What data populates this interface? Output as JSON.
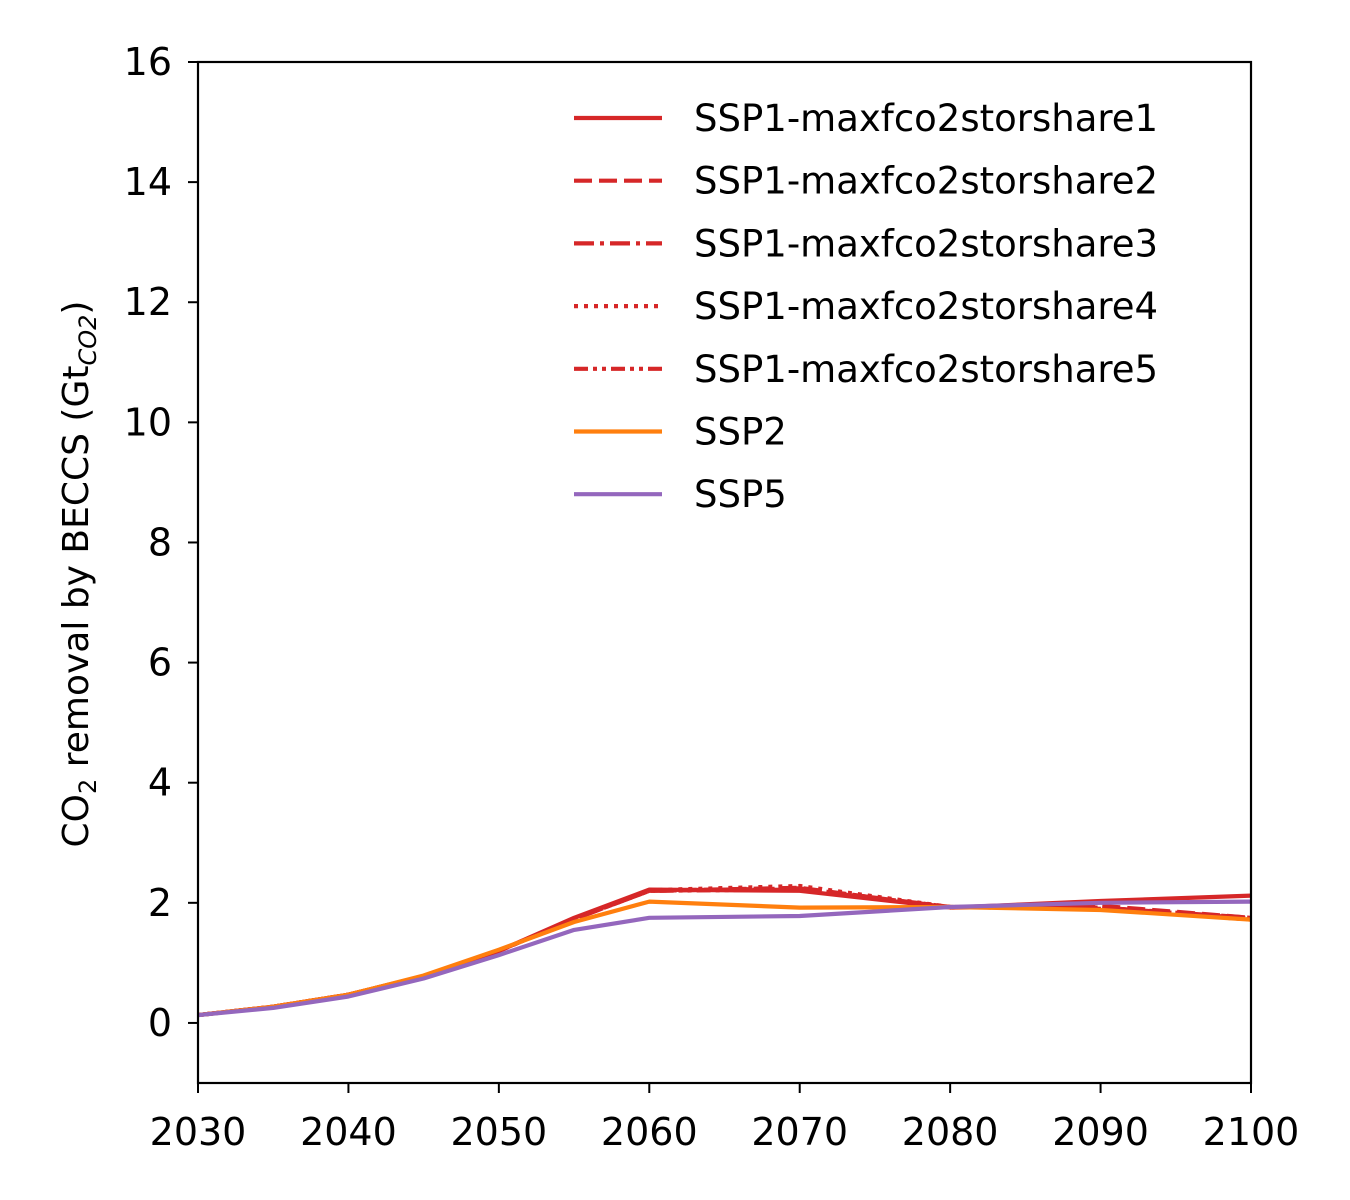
{
  "chart_data": {
    "type": "line",
    "title": "",
    "xlabel": "",
    "ylabel": {
      "prefix": "CO",
      "prefix_sub": "2",
      "middle": " removal by BECCS (Gt",
      "unit_sub": "CO2",
      "suffix": ")"
    },
    "xlim": [
      2030,
      2100
    ],
    "ylim": [
      -1,
      16
    ],
    "xticks": [
      2030,
      2040,
      2050,
      2060,
      2070,
      2080,
      2090,
      2100
    ],
    "yticks": [
      0,
      2,
      4,
      6,
      8,
      10,
      12,
      14,
      16
    ],
    "grid": false,
    "legend_position": "upper right",
    "x": [
      2030,
      2035,
      2040,
      2045,
      2050,
      2055,
      2060,
      2070,
      2080,
      2090,
      2100
    ],
    "series": [
      {
        "name": "SSP1-maxfco2storshare1",
        "color": "#d62728",
        "dash": "solid",
        "values": [
          0.13,
          0.27,
          0.47,
          0.78,
          1.2,
          1.75,
          2.22,
          2.2,
          1.92,
          2.03,
          2.12
        ]
      },
      {
        "name": "SSP1-maxfco2storshare2",
        "color": "#d62728",
        "dash": "dashed",
        "values": [
          0.13,
          0.27,
          0.47,
          0.78,
          1.2,
          1.73,
          2.2,
          2.25,
          1.92,
          1.95,
          1.75
        ]
      },
      {
        "name": "SSP1-maxfco2storshare3",
        "color": "#d62728",
        "dash": "dashdot",
        "values": [
          0.13,
          0.27,
          0.47,
          0.78,
          1.2,
          1.73,
          2.2,
          2.24,
          1.93,
          1.92,
          1.75
        ]
      },
      {
        "name": "SSP1-maxfco2storshare4",
        "color": "#d62728",
        "dash": "dotted",
        "values": [
          0.13,
          0.27,
          0.47,
          0.78,
          1.2,
          1.74,
          2.21,
          2.28,
          1.93,
          1.9,
          1.72
        ]
      },
      {
        "name": "SSP1-maxfco2storshare5",
        "color": "#d62728",
        "dash": "dashdotdot",
        "values": [
          0.13,
          0.27,
          0.47,
          0.78,
          1.2,
          1.73,
          2.2,
          2.22,
          1.93,
          1.92,
          1.74
        ]
      },
      {
        "name": "SSP2",
        "color": "#ff7f0e",
        "dash": "solid",
        "values": [
          0.13,
          0.27,
          0.47,
          0.79,
          1.22,
          1.68,
          2.02,
          1.92,
          1.93,
          1.88,
          1.72
        ]
      },
      {
        "name": "SSP5",
        "color": "#9467bd",
        "dash": "solid",
        "values": [
          0.13,
          0.25,
          0.44,
          0.74,
          1.13,
          1.55,
          1.75,
          1.78,
          1.93,
          2.0,
          2.02
        ]
      }
    ]
  }
}
